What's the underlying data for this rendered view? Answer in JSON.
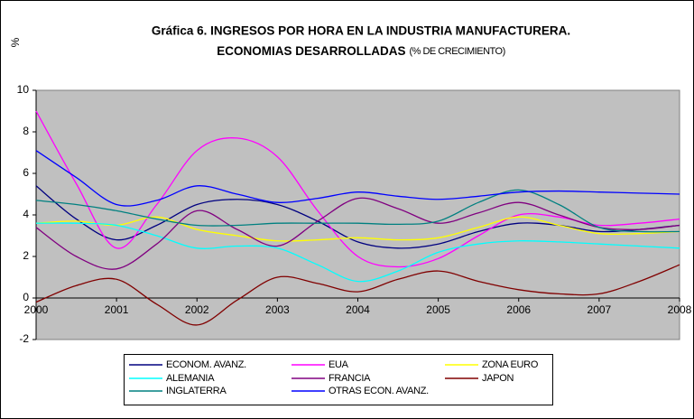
{
  "chart_data": {
    "type": "line",
    "title": [
      "Gráfica 6. INGRESOS POR HORA EN LA INDUSTRIA MANUFACTURERA.",
      "ECONOMIAS DESARROLLADAS"
    ],
    "subtitle": "(% DE CRECIMIENTO)",
    "ylabel": "%",
    "x": [
      2000,
      2000.5,
      2001,
      2001.5,
      2002,
      2002.5,
      2003,
      2003.5,
      2004,
      2004.5,
      2005,
      2005.5,
      2006,
      2006.5,
      2007,
      2007.5,
      2008
    ],
    "xlim": [
      2000,
      2008
    ],
    "xticks": [
      2000,
      2001,
      2002,
      2003,
      2004,
      2005,
      2006,
      2007,
      2008
    ],
    "ylim": [
      -2,
      10
    ],
    "yticks": [
      -2,
      0,
      2,
      4,
      6,
      8,
      10
    ],
    "grid": false,
    "legend": "bottom",
    "series": [
      {
        "name": "ECONOM. AVANZ.",
        "color": "#000080",
        "values": [
          5.4,
          3.8,
          2.8,
          3.5,
          4.5,
          4.75,
          4.5,
          3.7,
          2.7,
          2.4,
          2.6,
          3.2,
          3.6,
          3.5,
          3.2,
          3.3,
          3.5
        ]
      },
      {
        "name": "EUA",
        "color": "#ff00ff",
        "values": [
          9.0,
          5.5,
          2.4,
          4.5,
          7.1,
          7.7,
          6.8,
          4.2,
          2.0,
          1.5,
          1.9,
          3.0,
          4.0,
          3.9,
          3.5,
          3.6,
          3.8
        ]
      },
      {
        "name": "ZONA EURO",
        "color": "#ffff00",
        "values": [
          3.6,
          3.7,
          3.5,
          3.9,
          3.3,
          3.0,
          2.75,
          2.8,
          2.9,
          2.8,
          2.9,
          3.4,
          3.9,
          3.5,
          3.1,
          3.1,
          3.2
        ]
      },
      {
        "name": "ALEMANIA",
        "color": "#00ffff",
        "values": [
          3.6,
          3.6,
          3.5,
          3.0,
          2.4,
          2.5,
          2.4,
          1.6,
          0.8,
          1.3,
          2.2,
          2.6,
          2.75,
          2.7,
          2.6,
          2.5,
          2.4
        ]
      },
      {
        "name": "FRANCIA",
        "color": "#800080",
        "values": [
          3.4,
          2.0,
          1.4,
          2.6,
          4.2,
          3.3,
          2.5,
          3.7,
          4.8,
          4.3,
          3.6,
          4.1,
          4.6,
          4.0,
          3.4,
          3.3,
          3.5
        ]
      },
      {
        "name": "JAPON",
        "color": "#800000",
        "values": [
          -0.2,
          0.6,
          0.9,
          -0.3,
          -1.3,
          -0.1,
          1.0,
          0.7,
          0.3,
          0.9,
          1.3,
          0.8,
          0.4,
          0.2,
          0.2,
          0.8,
          1.6
        ]
      },
      {
        "name": "INGLATERRA",
        "color": "#008080",
        "values": [
          4.7,
          4.5,
          4.2,
          3.8,
          3.5,
          3.5,
          3.6,
          3.6,
          3.6,
          3.55,
          3.7,
          4.6,
          5.2,
          4.5,
          3.4,
          3.2,
          3.2
        ]
      },
      {
        "name": "OTRAS ECON. AVANZ.",
        "color": "#0000ff",
        "values": [
          7.1,
          5.8,
          4.5,
          4.7,
          5.4,
          5.0,
          4.6,
          4.8,
          5.1,
          4.9,
          4.75,
          4.9,
          5.1,
          5.15,
          5.1,
          5.05,
          5.0
        ]
      }
    ]
  }
}
